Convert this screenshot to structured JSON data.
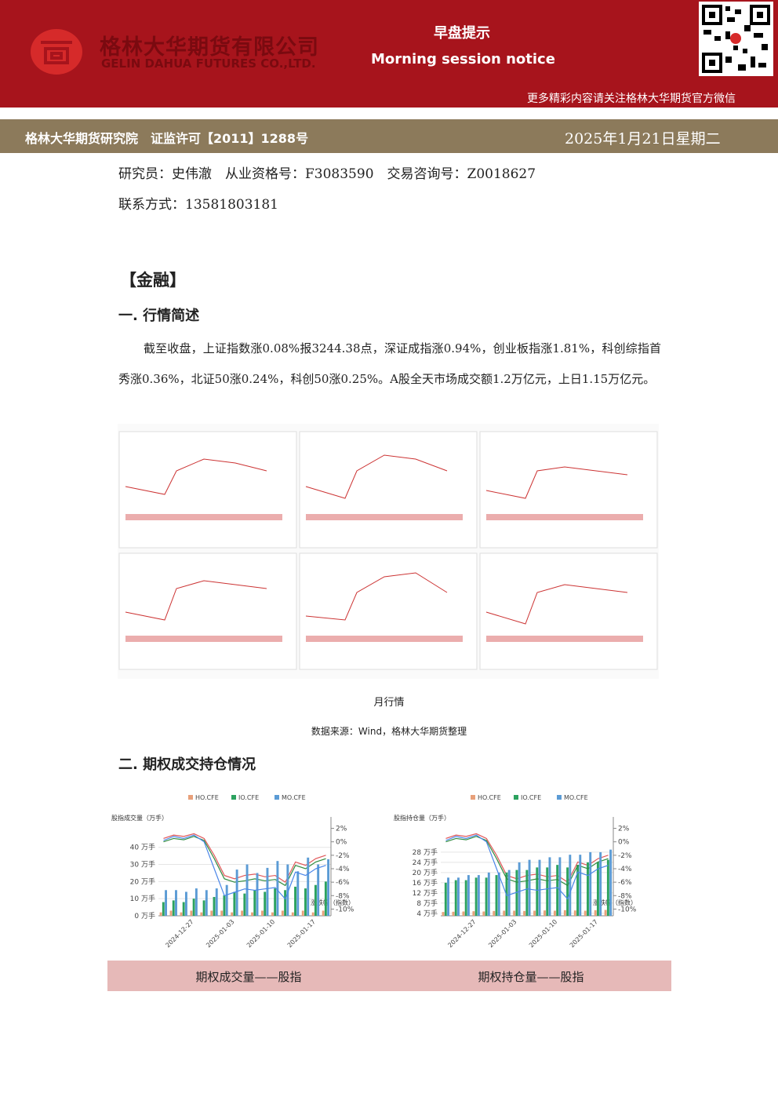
{
  "header": {
    "company_cn": "格林大华期货有限公司",
    "company_en": "GELIN DAHUA FUTURES CO.,LTD.",
    "title_cn": "早盘提示",
    "title_en": "Morning session notice",
    "follow": "更多精彩内容请关注格林大华期货官方微信"
  },
  "band": {
    "institute": "格林大华期货研究院　证监许可【2011】1288号",
    "date": "2025年1月21日星期二"
  },
  "researcher": {
    "line1": "研究员：史伟澈　从业资格号：F3083590　交易咨询号：Z0018627",
    "line2": "联系方式：13581803181"
  },
  "section": "【金融】",
  "heading1": "一. 行情简述",
  "paragraph": "截至收盘，上证指数涨0.08%报3244.38点，深证成指涨0.94%，创业板指涨1.81%，科创综指首秀涨0.36%，北证50涨0.24%，科创50涨0.25%。A股全天市场成交额1.2万亿元，上日1.15万亿元。",
  "figure1": {
    "caption": "月行情",
    "source": "数据来源：Wind，格林大华期货整理"
  },
  "heading2": "二. 期权成交持仓情况",
  "chart_data": [
    {
      "type": "bar-line",
      "y_title": "股指成交量（万手）",
      "y2_title": "涨跌幅（指数）",
      "categories": [
        null,
        null,
        null,
        "2024-12-27",
        null,
        null,
        null,
        "2025-01-03",
        null,
        null,
        null,
        "2025-01-10",
        null,
        null,
        null,
        "2025-01-17",
        null
      ],
      "ylim": [
        0,
        55
      ],
      "yticks": [
        {
          "value": 0,
          "label": "0 万手"
        },
        {
          "value": 10,
          "label": "10 万手"
        },
        {
          "value": 20,
          "label": "20 万手"
        },
        {
          "value": 30,
          "label": "30 万手"
        },
        {
          "value": 40,
          "label": "40 万手"
        }
      ],
      "y2lim": [
        -11,
        3
      ],
      "y2ticks": [
        {
          "value": 2,
          "label": "2%"
        },
        {
          "value": 0,
          "label": "0%"
        },
        {
          "value": -2,
          "label": "-2%"
        },
        {
          "value": -4,
          "label": "-4%"
        },
        {
          "value": -6,
          "label": "-6%"
        },
        {
          "value": -8,
          "label": "-8%"
        },
        {
          "value": -10,
          "label": "-10%"
        }
      ],
      "grid": true,
      "series": [
        {
          "name": "HO.CFE",
          "color": "#e8a07a",
          "line_color": "#e15759",
          "values": [
            2,
            3,
            2,
            3,
            2,
            3,
            3,
            2,
            3,
            2,
            3,
            2,
            3,
            2,
            3,
            2,
            3
          ],
          "pct_change": [
            0.5,
            1,
            0.8,
            1.2,
            0.5,
            -2,
            -5,
            -5.5,
            -5,
            -4.8,
            -5.2,
            -5,
            -6,
            -3,
            -3.5,
            -2.5,
            -2
          ]
        },
        {
          "name": "IO.CFE",
          "color": "#2ca25f",
          "line_color": "#2e8b3e",
          "values": [
            8,
            9,
            8,
            10,
            9,
            11,
            12,
            14,
            13,
            15,
            14,
            16,
            15,
            17,
            16,
            18,
            20
          ],
          "pct_change": [
            0,
            0.5,
            0.3,
            0.8,
            0.2,
            -2.5,
            -5.5,
            -6,
            -5.8,
            -5.5,
            -5.8,
            -5.6,
            -6.5,
            -3.5,
            -4,
            -3,
            -2.5
          ]
        },
        {
          "name": "MO.CFE",
          "color": "#5b9bd5",
          "line_color": "#4a86e8",
          "values": [
            15,
            15,
            14,
            16,
            15,
            16,
            18,
            27,
            30,
            25,
            28,
            32,
            30,
            26,
            34,
            30,
            33
          ],
          "pct_change": [
            0.2,
            0.8,
            0.5,
            1,
            0,
            -4,
            -8,
            -7.5,
            -7,
            -7.2,
            -7,
            -6.8,
            -8.5,
            -4.5,
            -5,
            -4,
            -3.5
          ]
        }
      ]
    },
    {
      "type": "bar-line",
      "y_title": "股指持仓量（万手）",
      "y2_title": "涨跌幅（指数）",
      "categories": [
        null,
        null,
        null,
        "2024-12-27",
        null,
        null,
        null,
        "2025-01-03",
        null,
        null,
        null,
        "2025-01-10",
        null,
        null,
        null,
        "2025-01-17",
        null
      ],
      "ylim": [
        3,
        40
      ],
      "yticks": [
        {
          "value": 4,
          "label": "4 万手"
        },
        {
          "value": 8,
          "label": "8 万手"
        },
        {
          "value": 12,
          "label": "12 万手"
        },
        {
          "value": 16,
          "label": "16 万手"
        },
        {
          "value": 20,
          "label": "20 万手"
        },
        {
          "value": 24,
          "label": "24 万手"
        },
        {
          "value": 28,
          "label": "28 万手"
        }
      ],
      "y2lim": [
        -11,
        3
      ],
      "y2ticks": [
        {
          "value": 2,
          "label": "2%"
        },
        {
          "value": 0,
          "label": "0%"
        },
        {
          "value": -2,
          "label": "-2%"
        },
        {
          "value": -4,
          "label": "-4%"
        },
        {
          "value": -6,
          "label": "-6%"
        },
        {
          "value": -8,
          "label": "-8%"
        },
        {
          "value": -10,
          "label": "-10%"
        }
      ],
      "grid": true,
      "series": [
        {
          "name": "HO.CFE",
          "color": "#e8a07a",
          "line_color": "#e15759",
          "values": [
            4.5,
            4.6,
            4.7,
            4.8,
            4.7,
            4.9,
            5,
            5,
            4.9,
            5,
            5.1,
            5,
            5.2,
            5.1,
            5,
            5.2,
            5.3
          ],
          "pct_change": [
            0.5,
            1,
            0.8,
            1.2,
            0.5,
            -2,
            -5,
            -5.5,
            -5,
            -4.8,
            -5.2,
            -5,
            -6,
            -3,
            -3.5,
            -2.5,
            -2
          ]
        },
        {
          "name": "IO.CFE",
          "color": "#2ca25f",
          "line_color": "#2e8b3e",
          "values": [
            16,
            17,
            17,
            18,
            18,
            19,
            20,
            21,
            21,
            22,
            22,
            23,
            22,
            23,
            24,
            24,
            25
          ],
          "pct_change": [
            0,
            0.5,
            0.3,
            0.8,
            0.2,
            -2.5,
            -5.5,
            -6,
            -5.8,
            -5.5,
            -5.8,
            -5.6,
            -6.5,
            -3.5,
            -4,
            -3,
            -2.5
          ]
        },
        {
          "name": "MO.CFE",
          "color": "#5b9bd5",
          "line_color": "#4a86e8",
          "values": [
            18,
            18,
            19,
            19,
            20,
            20,
            21,
            24,
            25,
            25,
            26,
            26,
            27,
            27,
            28,
            28,
            29
          ],
          "pct_change": [
            0.2,
            0.8,
            0.5,
            1,
            0,
            -4,
            -8,
            -7.5,
            -7,
            -7.2,
            -7,
            -6.8,
            -8.5,
            -4.5,
            -5,
            -4,
            -3.5
          ]
        }
      ]
    }
  ],
  "chart_captions": [
    "期权成交量——股指",
    "期权持仓量——股指"
  ]
}
